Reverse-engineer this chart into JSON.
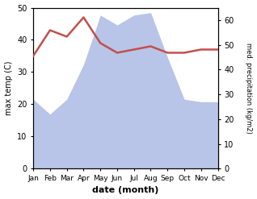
{
  "months": [
    "Jan",
    "Feb",
    "Mar",
    "Apr",
    "May",
    "Jun",
    "Jul",
    "Aug",
    "Sep",
    "Oct",
    "Nov",
    "Dec"
  ],
  "temp": [
    35,
    43,
    41,
    47,
    39,
    36,
    37,
    38,
    36,
    36,
    37,
    37
  ],
  "precip": [
    28,
    22,
    28,
    42,
    62,
    58,
    62,
    63,
    45,
    28,
    27,
    27
  ],
  "temp_color": "#c0504d",
  "precip_fill_color": "#b8c5e8",
  "left_ylabel": "max temp (C)",
  "right_ylabel": "med. precipitation (kg/m2)",
  "xlabel": "date (month)",
  "left_ylim": [
    0,
    50
  ],
  "right_ylim": [
    0,
    65
  ],
  "left_yticks": [
    0,
    10,
    20,
    30,
    40,
    50
  ],
  "right_yticks": [
    0,
    10,
    20,
    30,
    40,
    50,
    60
  ],
  "bg_color": "#ffffff"
}
